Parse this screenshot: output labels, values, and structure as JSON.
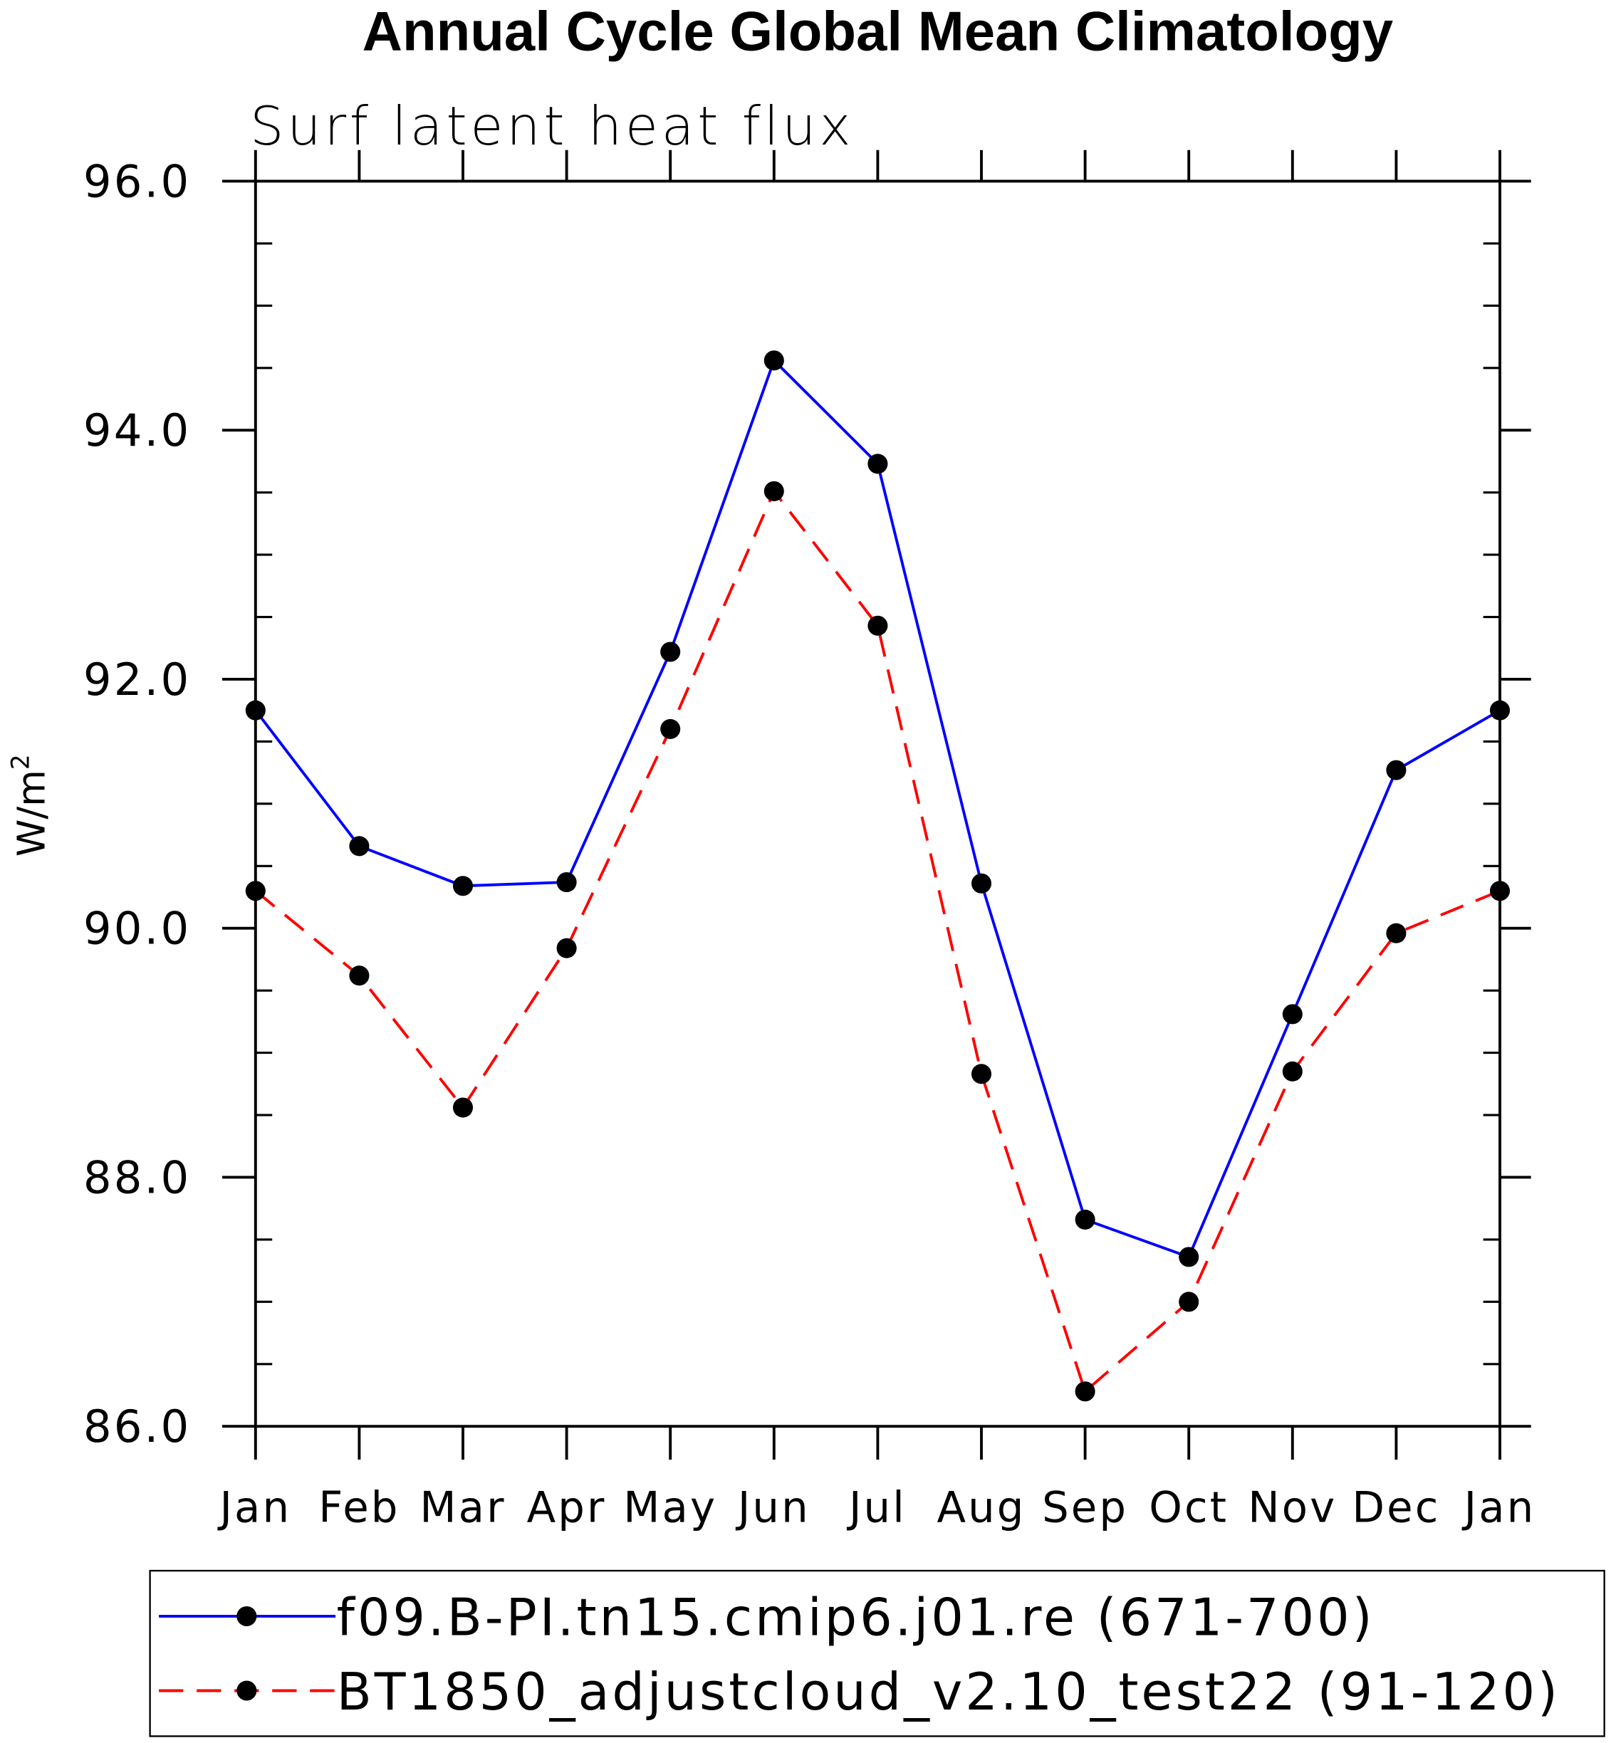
{
  "chart_data": {
    "type": "line",
    "title": "Annual Cycle Global Mean Climatology",
    "subtitle": "Surf latent heat flux",
    "xlabel": "",
    "ylabel": "W/m",
    "ylabel_superscript": "2",
    "ylim": [
      86.0,
      96.0
    ],
    "y_ticks": [
      "86.0",
      "88.0",
      "90.0",
      "92.0",
      "94.0",
      "96.0"
    ],
    "y_tick_values": [
      86,
      88,
      90,
      92,
      94,
      96
    ],
    "categories": [
      "Jan",
      "Feb",
      "Mar",
      "Apr",
      "May",
      "Jun",
      "Jul",
      "Aug",
      "Sep",
      "Oct",
      "Nov",
      "Dec",
      "Jan"
    ],
    "grid": false,
    "legend_position": "bottom",
    "series": [
      {
        "name": "f09.B-PI.tn15.cmip6.j01.re (671-700)",
        "color": "#0000ff",
        "dash": "solid",
        "values": [
          91.75,
          90.66,
          90.34,
          90.37,
          92.22,
          94.56,
          93.73,
          90.36,
          87.66,
          87.36,
          89.31,
          91.27,
          91.75
        ]
      },
      {
        "name": "BT1850_adjustcloud_v2.10_test22 (91-120)",
        "color": "#ff0000",
        "dash": "dashed",
        "values": [
          90.3,
          89.62,
          88.56,
          89.84,
          91.6,
          93.51,
          92.43,
          88.83,
          86.28,
          87.0,
          88.85,
          89.96,
          90.3
        ]
      }
    ]
  }
}
